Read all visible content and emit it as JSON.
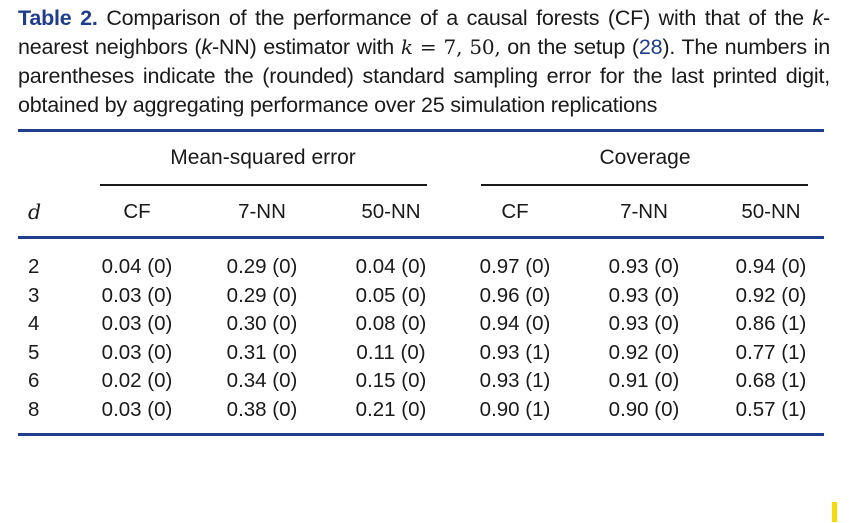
{
  "caption": {
    "label": "Table 2.",
    "text_a": " Comparison of the performance of a causal forests (CF) with that of the ",
    "k1": "k",
    "text_b": "-nearest neighbors (",
    "k2": "k",
    "text_c": "-NN) estimator with ",
    "k3": "k",
    "math": " = 7,  50,",
    "text_d": " on the setup (",
    "ref": "28",
    "text_e": "). The numbers in parentheses indicate the (rounded) standard sampling error for the last printed digit, obtained by aggregating performance over 25 simulation replications"
  },
  "groups": {
    "mse": "Mean-squared error",
    "coverage": "Coverage"
  },
  "columns": [
    "d",
    "CF",
    "7-NN",
    "50-NN",
    "CF",
    "7-NN",
    "50-NN"
  ],
  "rows": [
    [
      "2",
      "0.04 (0)",
      "0.29 (0)",
      "0.04 (0)",
      "0.97 (0)",
      "0.93 (0)",
      "0.94 (0)"
    ],
    [
      "3",
      "0.03 (0)",
      "0.29 (0)",
      "0.05 (0)",
      "0.96 (0)",
      "0.93 (0)",
      "0.92 (0)"
    ],
    [
      "4",
      "0.03 (0)",
      "0.30 (0)",
      "0.08 (0)",
      "0.94 (0)",
      "0.93 (0)",
      "0.86 (1)"
    ],
    [
      "5",
      "0.03 (0)",
      "0.31 (0)",
      "0.11 (0)",
      "0.93 (1)",
      "0.92 (0)",
      "0.77 (1)"
    ],
    [
      "6",
      "0.02 (0)",
      "0.34 (0)",
      "0.15 (0)",
      "0.93 (1)",
      "0.91 (0)",
      "0.68 (1)"
    ],
    [
      "8",
      "0.03 (0)",
      "0.38 (0)",
      "0.21 (0)",
      "0.90 (1)",
      "0.90 (0)",
      "0.57 (1)"
    ]
  ],
  "colors": {
    "accent": "#1f3d8a",
    "marker": "#f5d90a"
  }
}
